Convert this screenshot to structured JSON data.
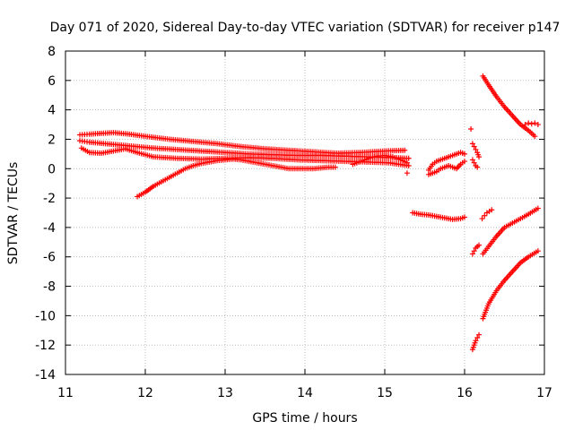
{
  "chart_data": {
    "type": "scatter",
    "title": "Day 071 of 2020, Sidereal Day-to-day VTEC variation (SDTVAR) for receiver p147",
    "xlabel": "GPS time / hours",
    "ylabel": "SDTVAR / TECUs",
    "xlim": [
      11,
      17
    ],
    "ylim": [
      -14,
      8
    ],
    "x_ticks": [
      "11",
      "12",
      "13",
      "14",
      "15",
      "16",
      "17"
    ],
    "y_ticks": [
      "8",
      "6",
      "4",
      "2",
      "0",
      "-2",
      "-4",
      "-6",
      "-8",
      "-10",
      "-12",
      "-14"
    ],
    "grid": true,
    "marker": "+",
    "color": "#ff0000",
    "series": [
      {
        "x": [
          11.18,
          11.3,
          11.45,
          11.6,
          11.8,
          12.0,
          12.3,
          12.6,
          12.9,
          13.2,
          13.5,
          13.8,
          14.1,
          14.4,
          14.7,
          15.0,
          15.25
        ],
        "y": [
          2.3,
          2.35,
          2.4,
          2.45,
          2.35,
          2.2,
          2.0,
          1.85,
          1.7,
          1.5,
          1.35,
          1.25,
          1.15,
          1.05,
          1.1,
          1.2,
          1.25
        ]
      },
      {
        "x": [
          11.18,
          11.3,
          11.5,
          11.7,
          11.9,
          12.1,
          12.4,
          12.7,
          13.0,
          13.3,
          13.6,
          13.9,
          14.2,
          14.5,
          14.8,
          15.1,
          15.3
        ],
        "y": [
          1.9,
          1.8,
          1.7,
          1.6,
          1.5,
          1.4,
          1.3,
          1.2,
          1.1,
          1.0,
          0.95,
          0.9,
          0.9,
          0.85,
          0.8,
          0.75,
          0.7
        ]
      },
      {
        "x": [
          11.2,
          11.3,
          11.45,
          11.6,
          11.75,
          11.9,
          12.1,
          12.4,
          12.7,
          13.0,
          13.3,
          13.6,
          13.9,
          14.2,
          14.5,
          14.8,
          15.05,
          15.3
        ],
        "y": [
          1.4,
          1.1,
          1.05,
          1.2,
          1.35,
          1.1,
          0.8,
          0.7,
          0.65,
          0.7,
          0.75,
          0.7,
          0.6,
          0.55,
          0.5,
          0.45,
          0.4,
          0.2
        ]
      },
      {
        "x": [
          11.9,
          12.0,
          12.1,
          12.2,
          12.3,
          12.4,
          12.5,
          12.6,
          12.7,
          12.8,
          12.9,
          13.0,
          13.1,
          13.2,
          13.3,
          13.4,
          13.5,
          13.6,
          13.7,
          13.8,
          13.9,
          14.0,
          14.1,
          14.2,
          14.3,
          14.38
        ],
        "y": [
          -1.9,
          -1.6,
          -1.2,
          -0.9,
          -0.6,
          -0.3,
          0.0,
          0.2,
          0.35,
          0.45,
          0.55,
          0.6,
          0.65,
          0.6,
          0.5,
          0.4,
          0.3,
          0.2,
          0.1,
          0.0,
          0.0,
          0.0,
          0.0,
          0.05,
          0.1,
          0.1
        ]
      },
      {
        "x": [
          14.6,
          14.7,
          14.8,
          14.9,
          15.0,
          15.1,
          15.2,
          15.28
        ],
        "y": [
          0.3,
          0.5,
          0.7,
          0.85,
          0.9,
          0.8,
          0.6,
          0.4
        ]
      },
      {
        "x": [
          15.28
        ],
        "y": [
          -0.3
        ]
      },
      {
        "x": [
          15.35,
          15.45,
          15.55,
          15.65,
          15.75,
          15.85,
          15.95,
          16.0
        ],
        "y": [
          -3.0,
          -3.1,
          -3.15,
          -3.25,
          -3.35,
          -3.45,
          -3.4,
          -3.3
        ]
      },
      {
        "x": [
          15.55,
          15.6,
          15.65,
          15.7,
          15.75,
          15.8,
          15.85,
          15.9,
          15.95,
          16.0
        ],
        "y": [
          -0.1,
          0.3,
          0.5,
          0.6,
          0.7,
          0.8,
          0.9,
          1.0,
          1.1,
          1.0
        ]
      },
      {
        "x": [
          15.55,
          15.6,
          15.65,
          15.7,
          15.75,
          15.8,
          15.85,
          15.9,
          15.95,
          16.0
        ],
        "y": [
          -0.4,
          -0.3,
          -0.2,
          0.0,
          0.1,
          0.2,
          0.1,
          0.0,
          0.3,
          0.5
        ]
      },
      {
        "x": [
          16.08
        ],
        "y": [
          2.7
        ]
      },
      {
        "x": [
          16.1,
          16.12,
          16.14,
          16.16,
          16.18
        ],
        "y": [
          1.7,
          1.5,
          1.3,
          1.1,
          0.8
        ]
      },
      {
        "x": [
          16.1,
          16.12,
          16.14,
          16.16
        ],
        "y": [
          0.6,
          0.4,
          0.2,
          0.1
        ]
      },
      {
        "x": [
          16.1,
          16.12,
          16.14,
          16.16,
          16.18
        ],
        "y": [
          -5.8,
          -5.6,
          -5.4,
          -5.3,
          -5.2
        ]
      },
      {
        "x": [
          16.1,
          16.12,
          16.14,
          16.16,
          16.18
        ],
        "y": [
          -12.3,
          -12.0,
          -11.7,
          -11.5,
          -11.3
        ]
      },
      {
        "x": [
          16.22,
          16.25,
          16.28,
          16.31,
          16.34
        ],
        "y": [
          -3.4,
          -3.2,
          -3.0,
          -2.9,
          -2.8
        ]
      },
      {
        "x": [
          16.23,
          16.3,
          16.4,
          16.5,
          16.6,
          16.7,
          16.8,
          16.88
        ],
        "y": [
          6.3,
          5.7,
          4.9,
          4.2,
          3.6,
          3.0,
          2.6,
          2.2
        ]
      },
      {
        "x": [
          16.76,
          16.8,
          16.84,
          16.88,
          16.92
        ],
        "y": [
          3.0,
          3.1,
          3.05,
          3.1,
          3.0
        ]
      },
      {
        "x": [
          16.23,
          16.3,
          16.4,
          16.5,
          16.6,
          16.7,
          16.8,
          16.92
        ],
        "y": [
          -5.8,
          -5.3,
          -4.6,
          -4.0,
          -3.7,
          -3.4,
          -3.1,
          -2.7
        ]
      },
      {
        "x": [
          16.23,
          16.3,
          16.4,
          16.5,
          16.6,
          16.7,
          16.8,
          16.92
        ],
        "y": [
          -10.2,
          -9.2,
          -8.3,
          -7.6,
          -7.0,
          -6.4,
          -6.0,
          -5.6
        ]
      }
    ]
  }
}
